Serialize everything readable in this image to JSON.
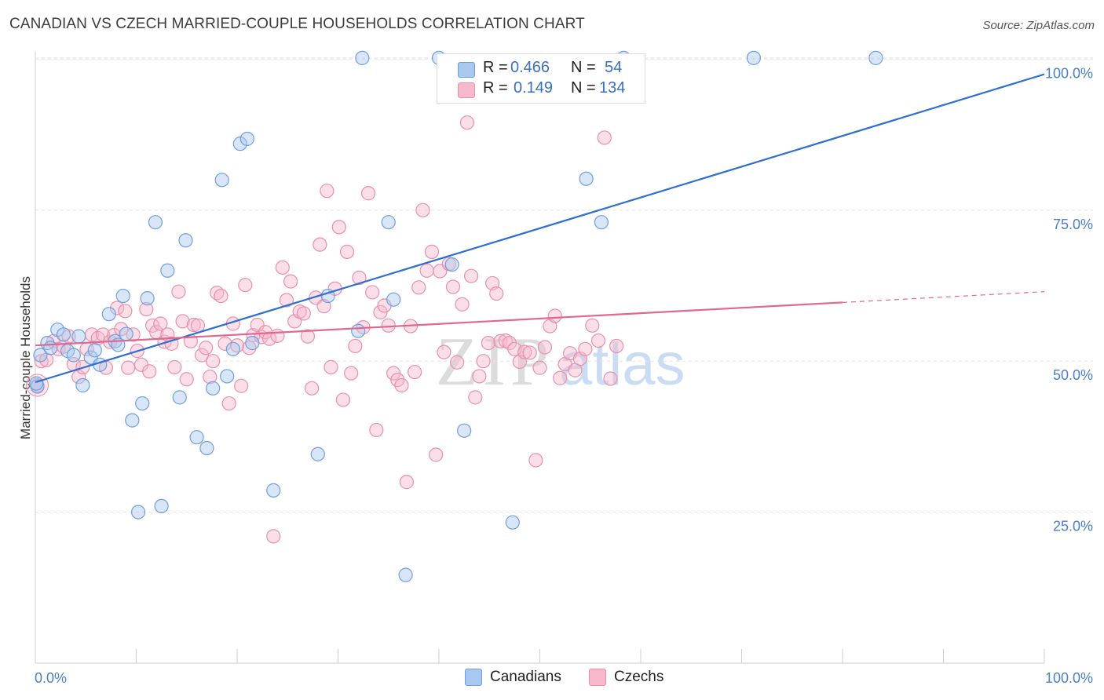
{
  "title": "CANADIAN VS CZECH MARRIED-COUPLE HOUSEHOLDS CORRELATION CHART",
  "source": "Source: ZipAtlas.com",
  "watermark": {
    "zip": "ZIP",
    "atlas": "atlas"
  },
  "legend": {
    "r_label": "R =",
    "n_label": "N =",
    "rows": [
      {
        "name": "Canadians",
        "r": "0.466",
        "n": "54",
        "color": "#a8c8f0"
      },
      {
        "name": "Czechs",
        "r": "0.149",
        "n": "134",
        "color": "#f7b8cb"
      }
    ]
  },
  "colors": {
    "blue_fill": "#a8c8f0",
    "blue_stroke": "#6f9fe0",
    "blue_line": "#2f6fd0",
    "pink_fill": "#f7b8cb",
    "pink_stroke": "#e890ac",
    "pink_line": "#e06890",
    "grid": "#e4e4e4",
    "axis_text": "#4a80c8"
  },
  "chart_data": {
    "type": "scatter",
    "title": "CANADIAN VS CZECH MARRIED-COUPLE HOUSEHOLDS CORRELATION CHART",
    "xlabel": "",
    "ylabel": "Married-couple Households",
    "xlim": [
      0,
      100
    ],
    "ylim": [
      0,
      102
    ],
    "x_tick_labels": [
      "0.0%",
      "100.0%"
    ],
    "y_ticks": [
      {
        "value": 25,
        "label": "25.0%"
      },
      {
        "value": 50,
        "label": "50.0%"
      },
      {
        "value": 75,
        "label": "75.0%"
      },
      {
        "value": 100,
        "label": "100.0%"
      }
    ],
    "grid": true,
    "series": [
      {
        "name": "Canadians",
        "r": 0.466,
        "n": 54,
        "trend": {
          "x0": 0,
          "y0": 46.5,
          "x1": 100,
          "y1": 97.5,
          "dashed_from": null
        },
        "points": [
          [
            0.2,
            45.8
          ],
          [
            0.5,
            51
          ],
          [
            1.2,
            53
          ],
          [
            1.5,
            52.2
          ],
          [
            2.2,
            55.2
          ],
          [
            2.8,
            54.4
          ],
          [
            3.2,
            51.7
          ],
          [
            3.8,
            51
          ],
          [
            4.3,
            54.1
          ],
          [
            4.7,
            46
          ],
          [
            5.5,
            50.6
          ],
          [
            5.9,
            51.8
          ],
          [
            6.4,
            49.4
          ],
          [
            7.3,
            57.8
          ],
          [
            7.9,
            53.3
          ],
          [
            8.2,
            52.7
          ],
          [
            8.7,
            60.8
          ],
          [
            9,
            54.5
          ],
          [
            9.6,
            40.2
          ],
          [
            10.2,
            25
          ],
          [
            10.6,
            43
          ],
          [
            11.1,
            60.4
          ],
          [
            11.9,
            73
          ],
          [
            12.5,
            26
          ],
          [
            13.1,
            65
          ],
          [
            14.3,
            44
          ],
          [
            14.9,
            70
          ],
          [
            16,
            37.4
          ],
          [
            17,
            35.6
          ],
          [
            17.6,
            45.5
          ],
          [
            18.5,
            80
          ],
          [
            19,
            47.5
          ],
          [
            19.6,
            52
          ],
          [
            20.3,
            86
          ],
          [
            21,
            86.8
          ],
          [
            21.5,
            53
          ],
          [
            23.6,
            28.6
          ],
          [
            28,
            34.6
          ],
          [
            29,
            60.8
          ],
          [
            32,
            55
          ],
          [
            32.4,
            100.2
          ],
          [
            35,
            73
          ],
          [
            35.5,
            60.2
          ],
          [
            36.7,
            14.6
          ],
          [
            40,
            100.2
          ],
          [
            41.3,
            66
          ],
          [
            42.5,
            38.5
          ],
          [
            47.3,
            23.3
          ],
          [
            54.6,
            80.2
          ],
          [
            56.1,
            73
          ],
          [
            58.3,
            100.2
          ],
          [
            71.2,
            100.2
          ],
          [
            83.3,
            100.2
          ],
          [
            0.1,
            46.3
          ]
        ]
      },
      {
        "name": "Czechs",
        "r": 0.149,
        "n": 134,
        "trend": {
          "x0": 0,
          "y0": 52.6,
          "x1": 100,
          "y1": 61.5,
          "dashed_from": 80
        },
        "points": [
          [
            0.2,
            46
          ],
          [
            0.6,
            50
          ],
          [
            1.1,
            50.2
          ],
          [
            1.8,
            53.3
          ],
          [
            2.3,
            52
          ],
          [
            2.8,
            52.4
          ],
          [
            3.3,
            54.1
          ],
          [
            3.8,
            49.5
          ],
          [
            4.3,
            47.4
          ],
          [
            4.7,
            49
          ],
          [
            5.1,
            52
          ],
          [
            5.6,
            54.4
          ],
          [
            6.2,
            53.8
          ],
          [
            6.7,
            54.4
          ],
          [
            7,
            48.9
          ],
          [
            7.4,
            53.2
          ],
          [
            7.8,
            54.3
          ],
          [
            8.1,
            58.8
          ],
          [
            8.5,
            55.3
          ],
          [
            8.9,
            58.3
          ],
          [
            9.2,
            48.9
          ],
          [
            9.7,
            54.4
          ],
          [
            10.1,
            51.7
          ],
          [
            10.5,
            49.4
          ],
          [
            11,
            58.6
          ],
          [
            11.3,
            48.3
          ],
          [
            11.6,
            55.9
          ],
          [
            12,
            54.8
          ],
          [
            12.4,
            56.2
          ],
          [
            12.8,
            53.2
          ],
          [
            13.1,
            54.4
          ],
          [
            13.5,
            52.9
          ],
          [
            13.8,
            49
          ],
          [
            14.2,
            61.5
          ],
          [
            14.6,
            56.6
          ],
          [
            15,
            47
          ],
          [
            15.4,
            53.3
          ],
          [
            15.7,
            56
          ],
          [
            16.1,
            55.9
          ],
          [
            16.5,
            51
          ],
          [
            16.9,
            52.2
          ],
          [
            17.3,
            47.4
          ],
          [
            17.6,
            50
          ],
          [
            18,
            61.3
          ],
          [
            18.4,
            60.8
          ],
          [
            18.8,
            52.9
          ],
          [
            19.2,
            43
          ],
          [
            19.6,
            56.2
          ],
          [
            20,
            52.6
          ],
          [
            20.4,
            45.9
          ],
          [
            20.8,
            62.6
          ],
          [
            21.2,
            52.2
          ],
          [
            21.6,
            54.3
          ],
          [
            22,
            56
          ],
          [
            22.4,
            54
          ],
          [
            22.8,
            54.8
          ],
          [
            23.2,
            53.7
          ],
          [
            23.6,
            21
          ],
          [
            24,
            54.2
          ],
          [
            24.5,
            65.5
          ],
          [
            24.9,
            60.1
          ],
          [
            25.3,
            63.2
          ],
          [
            25.7,
            56.6
          ],
          [
            26.2,
            58.2
          ],
          [
            26.6,
            57.9
          ],
          [
            27,
            54.1
          ],
          [
            27.4,
            45.5
          ],
          [
            27.8,
            60.5
          ],
          [
            28.2,
            69.3
          ],
          [
            28.6,
            59.1
          ],
          [
            28.9,
            78.2
          ],
          [
            29.3,
            49
          ],
          [
            29.7,
            62
          ],
          [
            30.1,
            72.2
          ],
          [
            30.5,
            43.6
          ],
          [
            30.9,
            68.1
          ],
          [
            31.3,
            48
          ],
          [
            31.7,
            52.5
          ],
          [
            32.1,
            63.8
          ],
          [
            32.5,
            55.6
          ],
          [
            33,
            77.8
          ],
          [
            33.4,
            61.4
          ],
          [
            33.8,
            38.6
          ],
          [
            34.2,
            58.1
          ],
          [
            34.6,
            59.2
          ],
          [
            35,
            55.9
          ],
          [
            35.5,
            48
          ],
          [
            35.9,
            46.9
          ],
          [
            36.3,
            46
          ],
          [
            36.8,
            30
          ],
          [
            37.2,
            55.8
          ],
          [
            37.6,
            48.2
          ],
          [
            38,
            62.2
          ],
          [
            38.4,
            75
          ],
          [
            38.8,
            65
          ],
          [
            39.3,
            68.1
          ],
          [
            39.7,
            34.5
          ],
          [
            40.1,
            64.9
          ],
          [
            40.5,
            51.5
          ],
          [
            41,
            66.1
          ],
          [
            41.4,
            62.3
          ],
          [
            41.8,
            49.8
          ],
          [
            42.3,
            59.4
          ],
          [
            42.8,
            89.5
          ],
          [
            43.2,
            64.1
          ],
          [
            43.6,
            44
          ],
          [
            44,
            47.5
          ],
          [
            44.4,
            50
          ],
          [
            44.9,
            53
          ],
          [
            45.3,
            62.9
          ],
          [
            45.7,
            61.2
          ],
          [
            46.1,
            53.3
          ],
          [
            46.6,
            53.4
          ],
          [
            47,
            53
          ],
          [
            47.5,
            52
          ],
          [
            48,
            49.9
          ],
          [
            48.5,
            51.5
          ],
          [
            49,
            51.4
          ],
          [
            49.6,
            33.6
          ],
          [
            50,
            48.9
          ],
          [
            50.5,
            52.3
          ],
          [
            51,
            55.8
          ],
          [
            51.5,
            57.5
          ],
          [
            52,
            47.2
          ],
          [
            52.5,
            49.5
          ],
          [
            53,
            51.3
          ],
          [
            53.5,
            48.5
          ],
          [
            54,
            50.4
          ],
          [
            54.5,
            52
          ],
          [
            55.2,
            55.9
          ],
          [
            55.8,
            53.4
          ],
          [
            56.4,
            87
          ],
          [
            57,
            47.1
          ],
          [
            57.6,
            52.5
          ]
        ]
      }
    ]
  }
}
